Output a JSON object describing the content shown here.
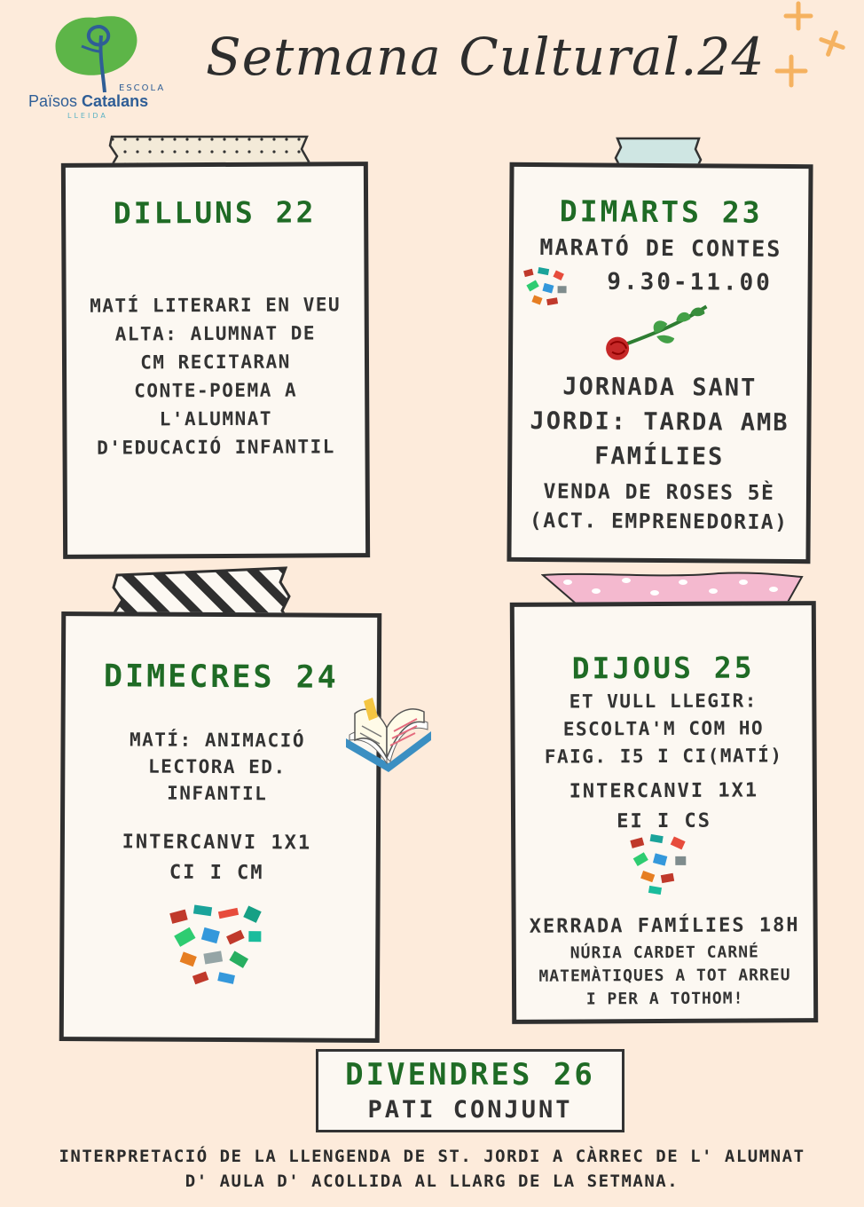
{
  "header": {
    "logo": {
      "escola": "ESCOLA",
      "name_light": "Països",
      "name_bold": "Catalans",
      "city": "LLEIDA"
    },
    "title": "Setmana Cultural.24"
  },
  "cards": {
    "monday": {
      "day": "DILLUNS 22",
      "lines": [
        "MATÍ LITERARI EN VEU",
        "ALTA: ALUMNAT DE",
        "CM RECITARAN",
        "CONTE-POEMA A",
        "L'ALUMNAT",
        "D'EDUCACIÓ INFANTIL"
      ]
    },
    "tuesday": {
      "day": "DIMARTS 23",
      "event1": "MARATÓ DE CONTES",
      "time1": "9.30-11.00",
      "event2_lines": [
        "JORNADA SANT",
        "JORDI: TARDA AMB",
        "FAMÍLIES"
      ],
      "event3_lines": [
        "VENDA DE ROSES 5È",
        "(ACT. EMPRENEDORIA)"
      ]
    },
    "wednesday": {
      "day": "DIMECRES 24",
      "event1_lines": [
        "MATÍ: ANIMACIÓ",
        "LECTORA ED.",
        "INFANTIL"
      ],
      "event2_lines": [
        "INTERCANVI 1X1",
        "CI I CM"
      ]
    },
    "thursday": {
      "day": "DIJOUS 25",
      "event1_lines": [
        "ET VULL LLEGIR:",
        "ESCOLTA'M COM HO",
        "FAIG. I5 I CI(MATÍ)"
      ],
      "event2_lines": [
        "INTERCANVI 1X1",
        "EI I CS"
      ],
      "event3_title": "XERRADA FAMÍLIES 18H",
      "event3_lines": [
        "NÚRIA CARDET CARNÉ",
        "MATEMÀTIQUES A TOT ARREU",
        "I PER A TOTHOM!"
      ]
    }
  },
  "friday": {
    "day": "DIVENDRES 26",
    "text": "PATI CONJUNT"
  },
  "footer": {
    "line1": "INTERPRETACIÓ DE LA LLENGENDA DE ST. JORDI A CÀRREC DE L' ALUMNAT",
    "line2": "D' AULA D' ACOLLIDA AL LLARG DE LA SETMANA."
  },
  "colors": {
    "background": "#fdebdb",
    "day_green": "#1f6b25",
    "logo_blue": "#2f5e96",
    "logo_green": "#5db548",
    "sparkle": "#f5b260"
  },
  "icons": [
    "logo-tree-icon",
    "sparkle-icon",
    "rose-icon",
    "open-book-icon",
    "books-cluster-icon"
  ]
}
